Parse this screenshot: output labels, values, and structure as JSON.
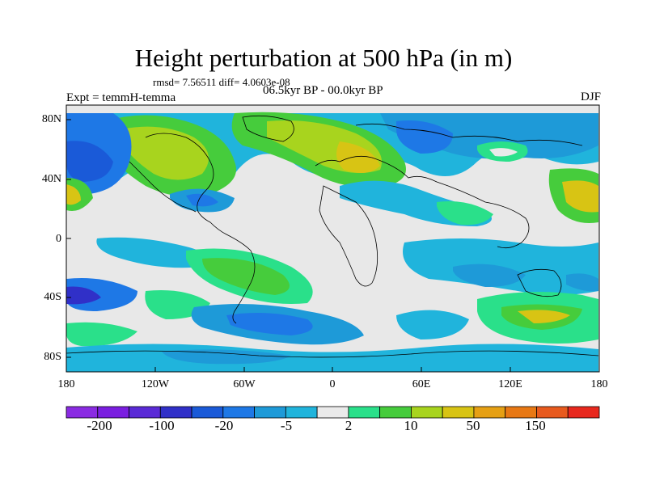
{
  "title": "Height perturbation at 500 hPa (in m)",
  "stats": "rmsd= 7.56511 diff= 4.0603e-08",
  "expt": "Expt = temmH-temma",
  "period": "06.5kyr BP - 00.0kyr BP",
  "season": "DJF",
  "lat_labels": [
    "80N",
    "40N",
    "0",
    "40S",
    "80S"
  ],
  "lon_labels": [
    "180",
    "120W",
    "60W",
    "0",
    "60E",
    "120E",
    "180"
  ],
  "colorbar": {
    "colors": [
      "#8a2be2",
      "#7a1ee0",
      "#5a2ad6",
      "#3030c8",
      "#1a5ad8",
      "#1e78e6",
      "#1e9ad8",
      "#20b4dc",
      "#eaeaea",
      "#2ae08a",
      "#46cc3c",
      "#a8d41e",
      "#d8c414",
      "#e6a014",
      "#e87814",
      "#e85a1e",
      "#e8281e"
    ],
    "labels": [
      "-200",
      "-100",
      "-20",
      "-5",
      "2",
      "10",
      "50",
      "150"
    ]
  },
  "colors": {
    "ocean_bg": "#e8e8e8",
    "coast": "#000000"
  }
}
